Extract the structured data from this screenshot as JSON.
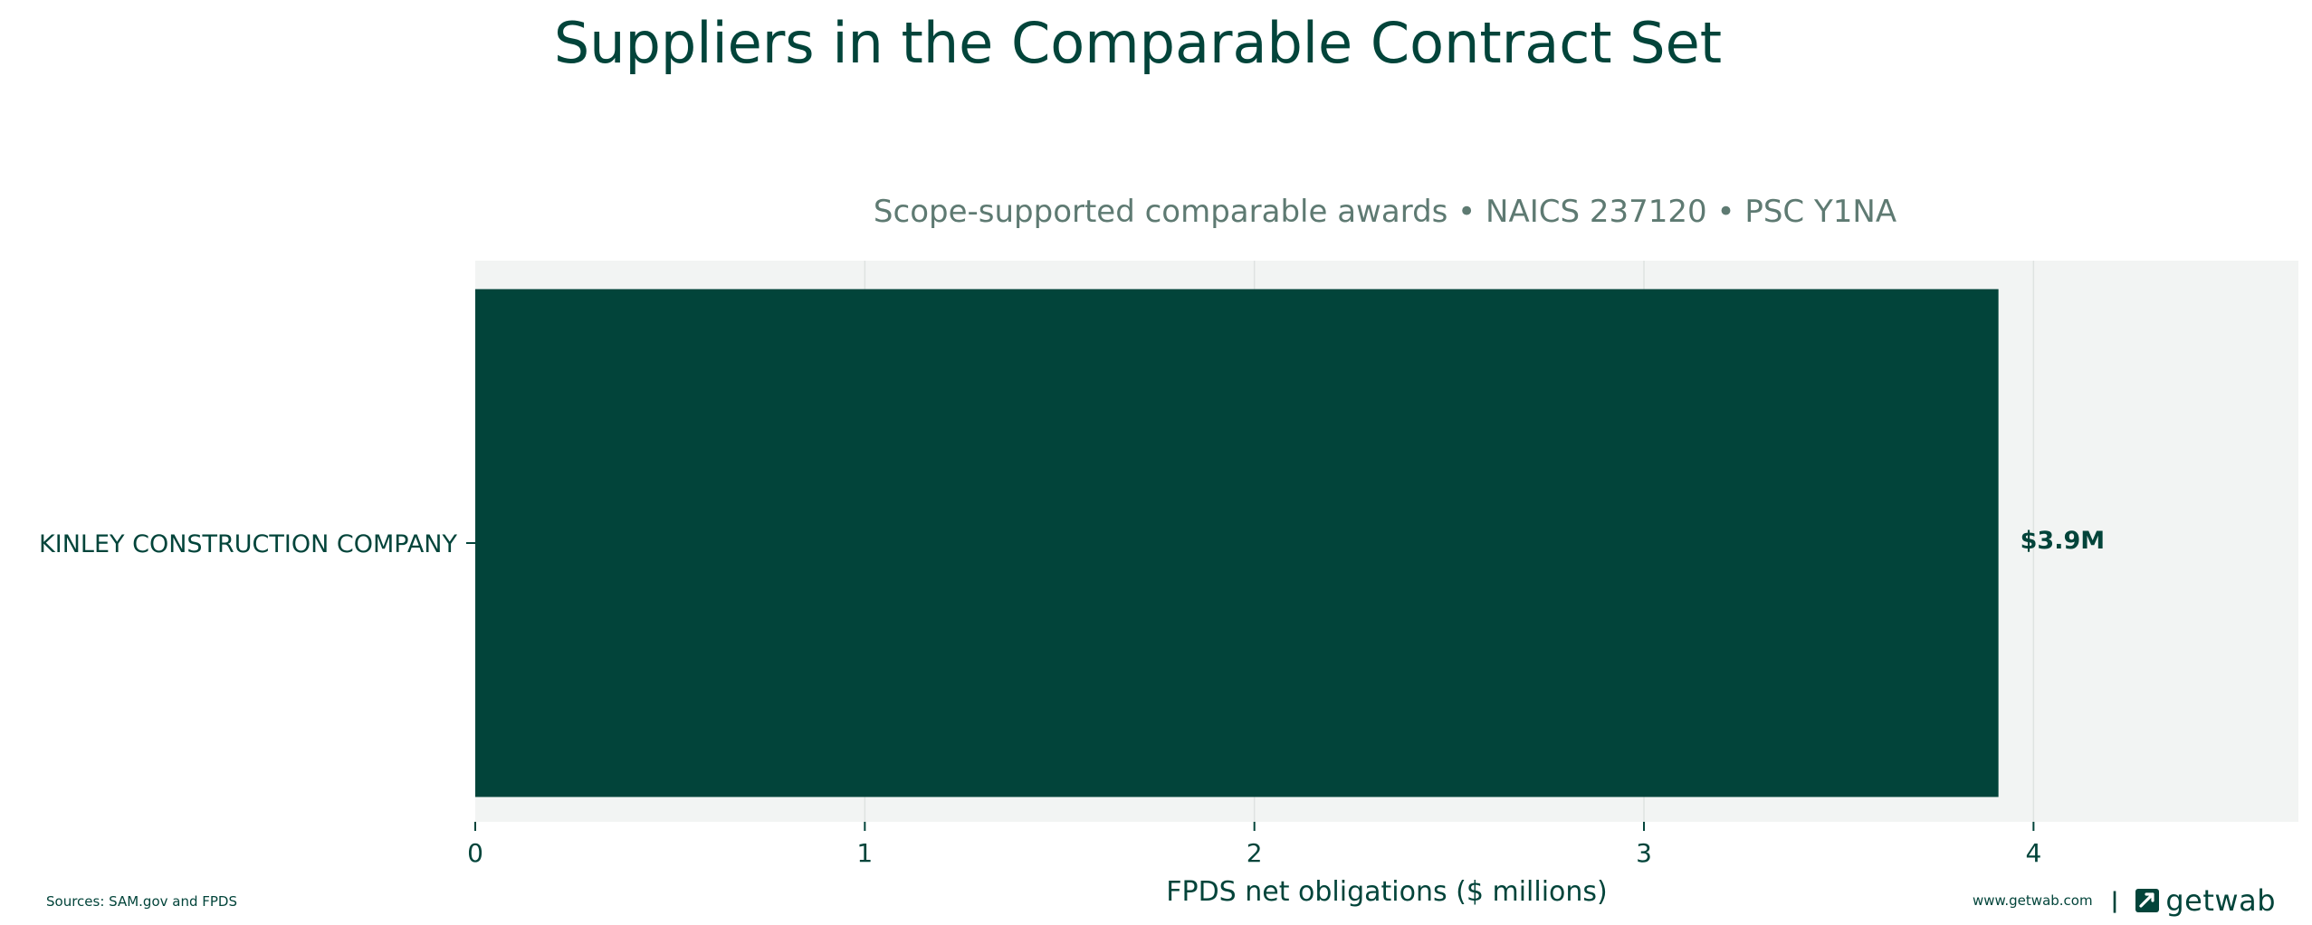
{
  "chart_data": {
    "type": "bar",
    "orientation": "horizontal",
    "title": "Suppliers in the Comparable Contract Set",
    "subtitle": "Scope-supported comparable awards • NAICS 237120 • PSC Y1NA",
    "categories": [
      "KINLEY CONSTRUCTION COMPANY"
    ],
    "values": [
      3.91
    ],
    "data_labels": [
      "$3.9M"
    ],
    "xlabel": "FPDS net obligations ($ millions)",
    "ylabel": "",
    "xlim": [
      0,
      4.68
    ],
    "xticks": [
      0,
      1,
      2,
      3,
      4
    ],
    "grid": "vertical",
    "legend": "none"
  },
  "colors": {
    "bar": "#02443a",
    "plot_background": "#f2f4f3",
    "grid": "#dfe3e1",
    "text": "#02443a",
    "subtitle": "#5e7a72"
  },
  "footer": {
    "sources": "Sources: SAM.gov and FPDS",
    "site": "www.getwab.com",
    "separator": "|",
    "brand": "getwab",
    "brand_icon": "getwab-logo-icon"
  }
}
